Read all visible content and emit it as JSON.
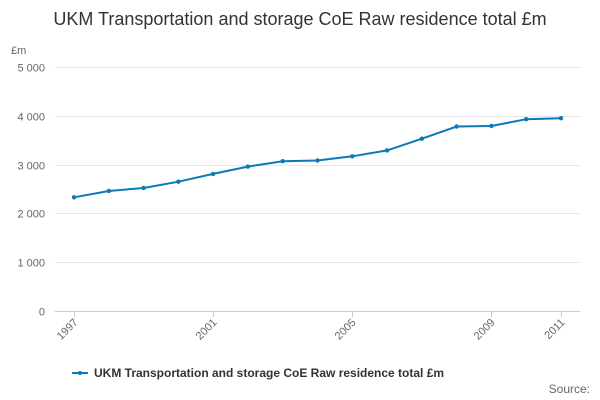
{
  "chart_data": {
    "type": "line",
    "title": "UKM Transportation and storage CoE Raw residence total £m",
    "ylabel": "£m",
    "xlabel": "",
    "ylim": [
      0,
      5000
    ],
    "yticks": [
      0,
      1000,
      2000,
      3000,
      4000,
      5000
    ],
    "ytick_labels": [
      "0",
      "1 000",
      "2 000",
      "3 000",
      "4 000",
      "5 000"
    ],
    "xlim": [
      1997,
      2011
    ],
    "xtick_labels": [
      "1997",
      "2001",
      "2005",
      "2009",
      "2011"
    ],
    "grid": true,
    "legend_position": "bottom",
    "series": [
      {
        "name": "UKM Transportation and storage CoE Raw residence total £m",
        "color": "#0b79b8",
        "x": [
          1997,
          1998,
          1999,
          2000,
          2001,
          2002,
          2003,
          2004,
          2005,
          2006,
          2007,
          2008,
          2009,
          2010,
          2011
        ],
        "values": [
          2330,
          2460,
          2520,
          2650,
          2810,
          2960,
          3070,
          3085,
          3170,
          3290,
          3530,
          3780,
          3790,
          3930,
          3950
        ]
      }
    ]
  },
  "source_label": "Source:"
}
